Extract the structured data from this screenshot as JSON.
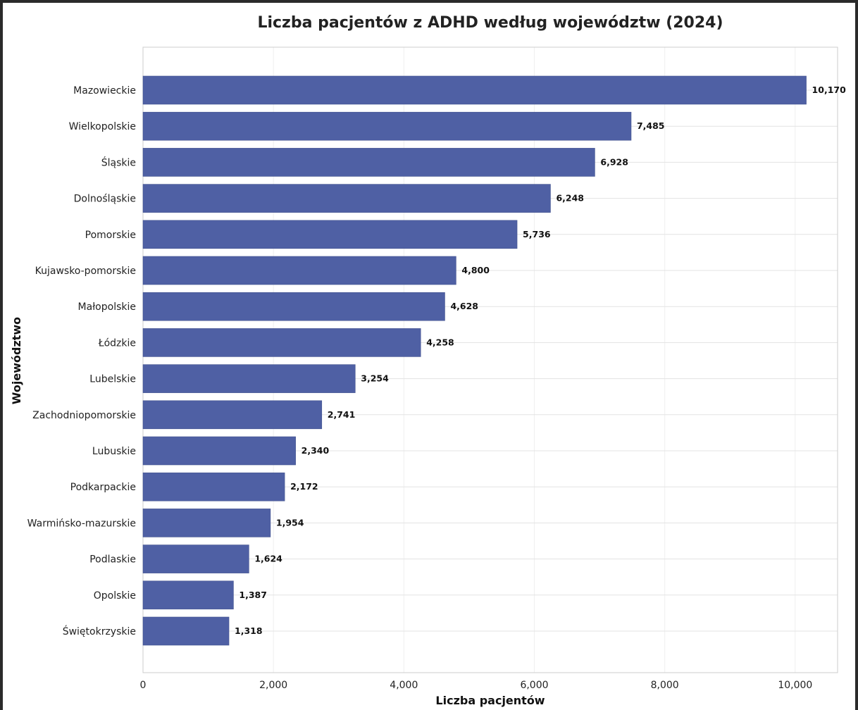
{
  "colors": {
    "bar": "#4f60a4",
    "bar_edge": "#44548f",
    "grid": "#e3e3e3",
    "axis_frame": "#cccccc",
    "window_border": "#2a2a2a"
  },
  "chart_data": {
    "type": "bar",
    "orientation": "horizontal",
    "title": "Liczba pacjentów z ADHD według województw (2024)",
    "xlabel": "Liczba pacjentów",
    "ylabel": "Województwo",
    "xlim": [
      0,
      10650
    ],
    "xticks": [
      0,
      2000,
      4000,
      6000,
      8000,
      10000
    ],
    "xtick_labels": [
      "0",
      "2,000",
      "4,000",
      "6,000",
      "8,000",
      "10,000"
    ],
    "grid": true,
    "categories": [
      "Mazowieckie",
      "Wielkopolskie",
      "Śląskie",
      "Dolnośląskie",
      "Pomorskie",
      "Kujawsko-pomorskie",
      "Małopolskie",
      "Łódzkie",
      "Lubelskie",
      "Zachodniopomorskie",
      "Lubuskie",
      "Podkarpackie",
      "Warmińsko-mazurskie",
      "Podlaskie",
      "Opolskie",
      "Świętokrzyskie"
    ],
    "values": [
      10170,
      7485,
      6928,
      6248,
      5736,
      4800,
      4628,
      4258,
      3254,
      2741,
      2340,
      2172,
      1954,
      1624,
      1387,
      1318
    ],
    "value_labels": [
      "10,170",
      "7,485",
      "6,928",
      "6,248",
      "5,736",
      "4,800",
      "4,628",
      "4,258",
      "3,254",
      "2,741",
      "2,340",
      "2,172",
      "1,954",
      "1,624",
      "1,387",
      "1,318"
    ]
  }
}
